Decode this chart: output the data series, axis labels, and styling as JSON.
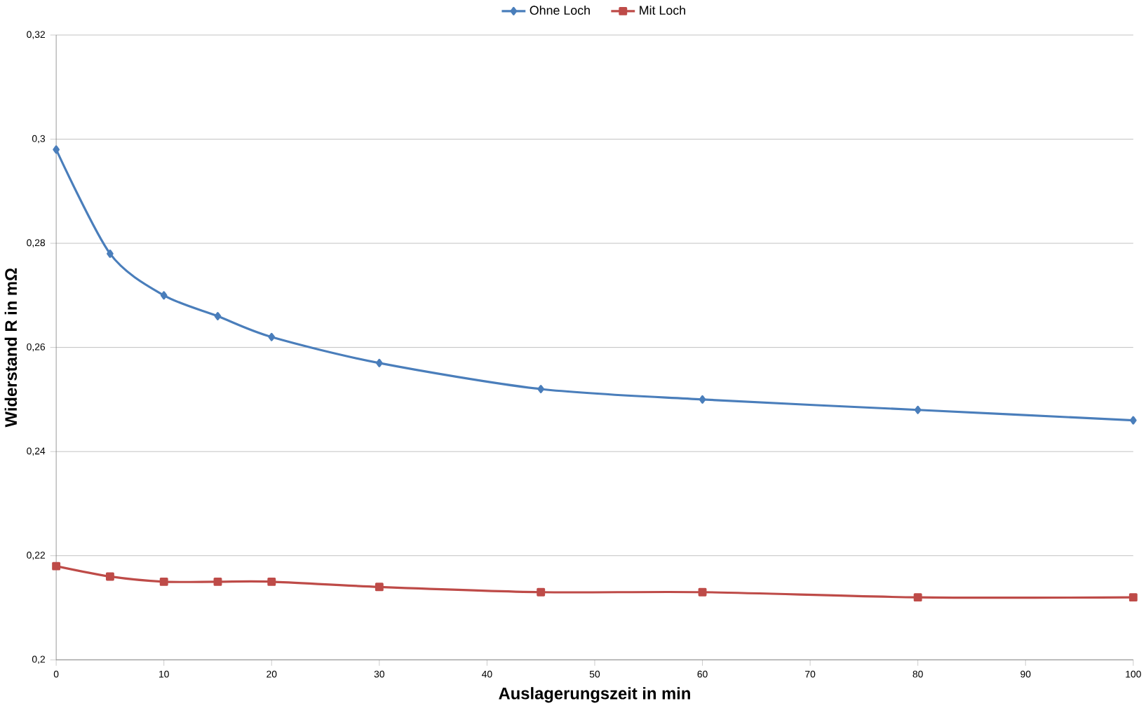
{
  "chart_data": {
    "type": "line",
    "xlabel": "Auslagerungszeit in min",
    "ylabel": "Widerstand R in mΩ",
    "x": [
      0,
      5,
      10,
      15,
      20,
      30,
      45,
      60,
      80,
      100
    ],
    "series": [
      {
        "name": "Ohne Loch",
        "color": "#4a7ebb",
        "marker": "diamond",
        "values": [
          0.298,
          0.278,
          0.27,
          0.266,
          0.262,
          0.257,
          0.252,
          0.25,
          0.248,
          0.246
        ]
      },
      {
        "name": "Mit Loch",
        "color": "#be4b48",
        "marker": "square",
        "values": [
          0.218,
          0.216,
          0.215,
          0.215,
          0.215,
          0.214,
          0.213,
          0.213,
          0.212,
          0.212
        ]
      }
    ],
    "xlim": [
      0,
      100
    ],
    "xticks": [
      0,
      10,
      20,
      30,
      40,
      50,
      60,
      70,
      80,
      90,
      100
    ],
    "ylim": [
      0.2,
      0.32
    ],
    "yticks": [
      {
        "value": 0.2,
        "label": "0,2"
      },
      {
        "value": 0.22,
        "label": "0,22"
      },
      {
        "value": 0.24,
        "label": "0,24"
      },
      {
        "value": 0.26,
        "label": "0,26"
      },
      {
        "value": 0.28,
        "label": "0,28"
      },
      {
        "value": 0.3,
        "label": "0,3"
      },
      {
        "value": 0.32,
        "label": "0,32"
      }
    ],
    "grid": "y",
    "legend": "top",
    "line_style": "solid"
  }
}
